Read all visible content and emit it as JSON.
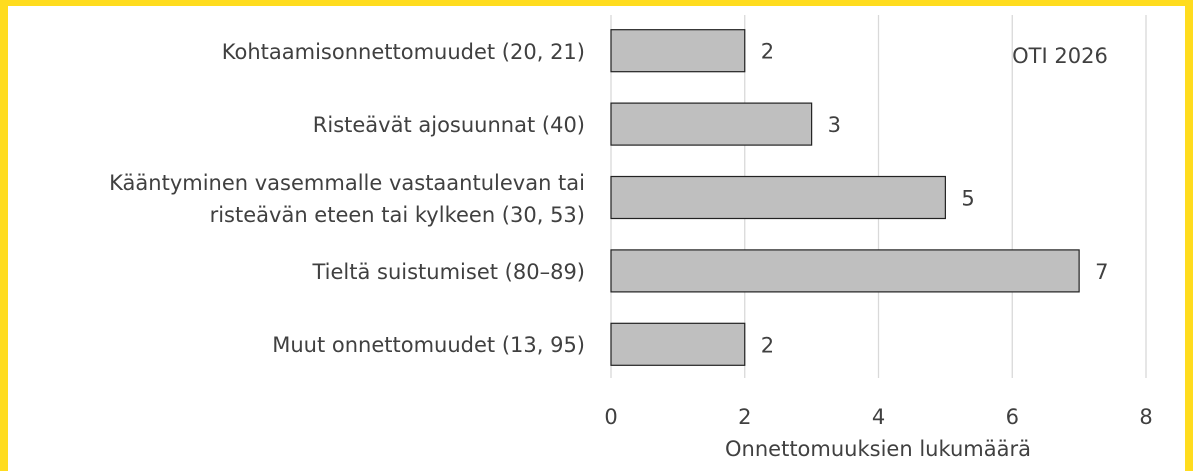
{
  "chart_data": {
    "type": "barh",
    "categories": [
      "Kohtaamisonnettomuudet (20, 21)",
      "Risteävät ajosuunnat (40)",
      "Kääntyminen vasemmalle vastaantulevan tai\nristeävän eteen tai kylkeen (30, 53)",
      "Tieltä suistumiset (80–89)",
      "Muut onnettomuudet (13, 95)"
    ],
    "values": [
      2,
      3,
      5,
      7,
      2
    ],
    "color": "#bfbfbf",
    "xlim": [
      0,
      8
    ],
    "xticks": [
      0,
      2,
      4,
      6,
      8
    ],
    "grid": true,
    "xlabel": "Onnettomuuksien lukumäärä",
    "annotation": "OTI 2026"
  }
}
